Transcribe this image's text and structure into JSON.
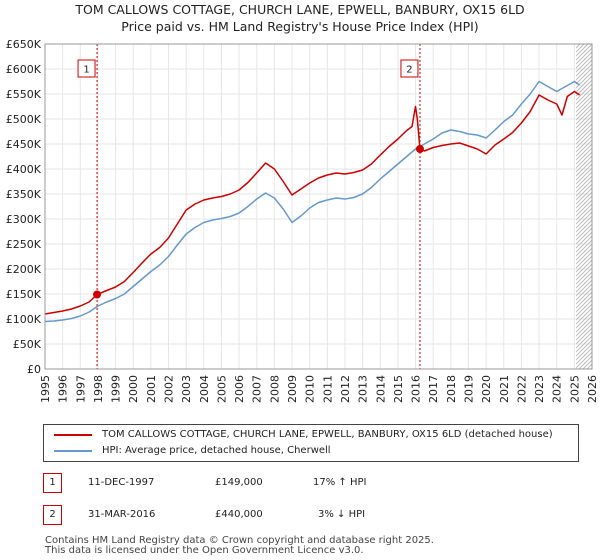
{
  "title_line1": "TOM CALLOWS COTTAGE, CHURCH LANE, EPWELL, BANBURY, OX15 6LD",
  "title_line2": "Price paid vs. HM Land Registry's House Price Index (HPI)",
  "colors": {
    "price": "#cc0000",
    "hpi": "#6699cc",
    "marker": "#cc0000",
    "hatch": "#bbbbbb",
    "grid": "#e6e6e6"
  },
  "chart_data": {
    "type": "line",
    "xlim": [
      1995,
      2026
    ],
    "ylim": [
      0,
      650000
    ],
    "x_ticks": [
      "1995",
      "1996",
      "1997",
      "1998",
      "1999",
      "2000",
      "2001",
      "2002",
      "2003",
      "2004",
      "2005",
      "2006",
      "2007",
      "2008",
      "2009",
      "2010",
      "2011",
      "2012",
      "2013",
      "2014",
      "2015",
      "2016",
      "2017",
      "2018",
      "2019",
      "2020",
      "2021",
      "2022",
      "2023",
      "2024",
      "2025",
      "2026"
    ],
    "y_ticks": [
      {
        "label": "£0",
        "value": 0
      },
      {
        "label": "£50K",
        "value": 50000
      },
      {
        "label": "£100K",
        "value": 100000
      },
      {
        "label": "£150K",
        "value": 150000
      },
      {
        "label": "£200K",
        "value": 200000
      },
      {
        "label": "£250K",
        "value": 250000
      },
      {
        "label": "£300K",
        "value": 300000
      },
      {
        "label": "£350K",
        "value": 350000
      },
      {
        "label": "£400K",
        "value": 400000
      },
      {
        "label": "£450K",
        "value": 450000
      },
      {
        "label": "£500K",
        "value": 500000
      },
      {
        "label": "£550K",
        "value": 550000
      },
      {
        "label": "£600K",
        "value": 600000
      },
      {
        "label": "£650K",
        "value": 650000
      }
    ],
    "hatch_from": 2025.1,
    "series": [
      {
        "name": "TOM CALLOWS COTTAGE, CHURCH LANE, EPWELL, BANBURY, OX15 6LD (detached house)",
        "color": "#cc0000",
        "points": [
          [
            1995.0,
            110000
          ],
          [
            1995.5,
            113000
          ],
          [
            1996.0,
            116000
          ],
          [
            1996.5,
            120000
          ],
          [
            1997.0,
            126000
          ],
          [
            1997.5,
            134000
          ],
          [
            1997.95,
            149000
          ],
          [
            1998.5,
            157000
          ],
          [
            1999.0,
            164000
          ],
          [
            1999.5,
            175000
          ],
          [
            2000.0,
            193000
          ],
          [
            2000.5,
            212000
          ],
          [
            2001.0,
            230000
          ],
          [
            2001.5,
            243000
          ],
          [
            2002.0,
            262000
          ],
          [
            2002.5,
            290000
          ],
          [
            2003.0,
            318000
          ],
          [
            2003.5,
            330000
          ],
          [
            2004.0,
            338000
          ],
          [
            2004.5,
            342000
          ],
          [
            2005.0,
            345000
          ],
          [
            2005.5,
            350000
          ],
          [
            2006.0,
            358000
          ],
          [
            2006.5,
            373000
          ],
          [
            2007.0,
            392000
          ],
          [
            2007.5,
            412000
          ],
          [
            2008.0,
            400000
          ],
          [
            2008.5,
            375000
          ],
          [
            2009.0,
            348000
          ],
          [
            2009.5,
            360000
          ],
          [
            2010.0,
            372000
          ],
          [
            2010.5,
            382000
          ],
          [
            2011.0,
            388000
          ],
          [
            2011.5,
            392000
          ],
          [
            2012.0,
            390000
          ],
          [
            2012.5,
            393000
          ],
          [
            2013.0,
            398000
          ],
          [
            2013.5,
            410000
          ],
          [
            2014.0,
            428000
          ],
          [
            2014.5,
            445000
          ],
          [
            2015.0,
            460000
          ],
          [
            2015.5,
            477000
          ],
          [
            2015.8,
            485000
          ],
          [
            2016.0,
            525000
          ],
          [
            2016.1,
            500000
          ],
          [
            2016.25,
            440000
          ],
          [
            2016.5,
            436000
          ],
          [
            2017.0,
            443000
          ],
          [
            2017.5,
            447000
          ],
          [
            2018.0,
            450000
          ],
          [
            2018.5,
            452000
          ],
          [
            2019.0,
            446000
          ],
          [
            2019.5,
            440000
          ],
          [
            2020.0,
            430000
          ],
          [
            2020.5,
            448000
          ],
          [
            2021.0,
            460000
          ],
          [
            2021.5,
            473000
          ],
          [
            2022.0,
            492000
          ],
          [
            2022.5,
            515000
          ],
          [
            2023.0,
            548000
          ],
          [
            2023.5,
            538000
          ],
          [
            2024.0,
            530000
          ],
          [
            2024.3,
            508000
          ],
          [
            2024.6,
            545000
          ],
          [
            2025.0,
            555000
          ],
          [
            2025.3,
            548000
          ]
        ]
      },
      {
        "name": "HPI: Average price, detached house, Cherwell",
        "color": "#6699cc",
        "points": [
          [
            1995.0,
            95000
          ],
          [
            1995.5,
            96000
          ],
          [
            1996.0,
            98000
          ],
          [
            1996.5,
            101000
          ],
          [
            1997.0,
            106000
          ],
          [
            1997.5,
            114000
          ],
          [
            1998.0,
            126000
          ],
          [
            1998.5,
            134000
          ],
          [
            1999.0,
            141000
          ],
          [
            1999.5,
            150000
          ],
          [
            2000.0,
            165000
          ],
          [
            2000.5,
            180000
          ],
          [
            2001.0,
            195000
          ],
          [
            2001.5,
            208000
          ],
          [
            2002.0,
            225000
          ],
          [
            2002.5,
            248000
          ],
          [
            2003.0,
            270000
          ],
          [
            2003.5,
            283000
          ],
          [
            2004.0,
            293000
          ],
          [
            2004.5,
            298000
          ],
          [
            2005.0,
            301000
          ],
          [
            2005.5,
            305000
          ],
          [
            2006.0,
            312000
          ],
          [
            2006.5,
            325000
          ],
          [
            2007.0,
            340000
          ],
          [
            2007.5,
            352000
          ],
          [
            2008.0,
            342000
          ],
          [
            2008.5,
            320000
          ],
          [
            2009.0,
            293000
          ],
          [
            2009.5,
            306000
          ],
          [
            2010.0,
            322000
          ],
          [
            2010.5,
            333000
          ],
          [
            2011.0,
            338000
          ],
          [
            2011.5,
            342000
          ],
          [
            2012.0,
            340000
          ],
          [
            2012.5,
            343000
          ],
          [
            2013.0,
            350000
          ],
          [
            2013.5,
            363000
          ],
          [
            2014.0,
            380000
          ],
          [
            2014.5,
            395000
          ],
          [
            2015.0,
            410000
          ],
          [
            2015.5,
            425000
          ],
          [
            2016.0,
            440000
          ],
          [
            2016.5,
            450000
          ],
          [
            2017.0,
            460000
          ],
          [
            2017.5,
            472000
          ],
          [
            2018.0,
            478000
          ],
          [
            2018.5,
            475000
          ],
          [
            2019.0,
            470000
          ],
          [
            2019.5,
            468000
          ],
          [
            2020.0,
            462000
          ],
          [
            2020.5,
            478000
          ],
          [
            2021.0,
            495000
          ],
          [
            2021.5,
            508000
          ],
          [
            2022.0,
            530000
          ],
          [
            2022.5,
            550000
          ],
          [
            2023.0,
            575000
          ],
          [
            2023.5,
            565000
          ],
          [
            2024.0,
            555000
          ],
          [
            2024.5,
            565000
          ],
          [
            2025.0,
            575000
          ],
          [
            2025.3,
            568000
          ]
        ]
      }
    ],
    "sales": [
      {
        "num": "1",
        "x": 1997.95,
        "value": 149000
      },
      {
        "num": "2",
        "x": 2016.25,
        "value": 440000
      }
    ]
  },
  "legend": {
    "price_label": "TOM CALLOWS COTTAGE, CHURCH LANE, EPWELL, BANBURY, OX15 6LD (detached house)",
    "hpi_label": "HPI: Average price, detached house, Cherwell"
  },
  "table": [
    {
      "num": "1",
      "date": "11-DEC-1997",
      "price": "£149,000",
      "hpi": "17% ↑ HPI"
    },
    {
      "num": "2",
      "date": "31-MAR-2016",
      "price": "£440,000",
      "hpi": "3% ↓ HPI"
    }
  ],
  "footer_line1": "Contains HM Land Registry data © Crown copyright and database right 2025.",
  "footer_line2": "This data is licensed under the Open Government Licence v3.0."
}
